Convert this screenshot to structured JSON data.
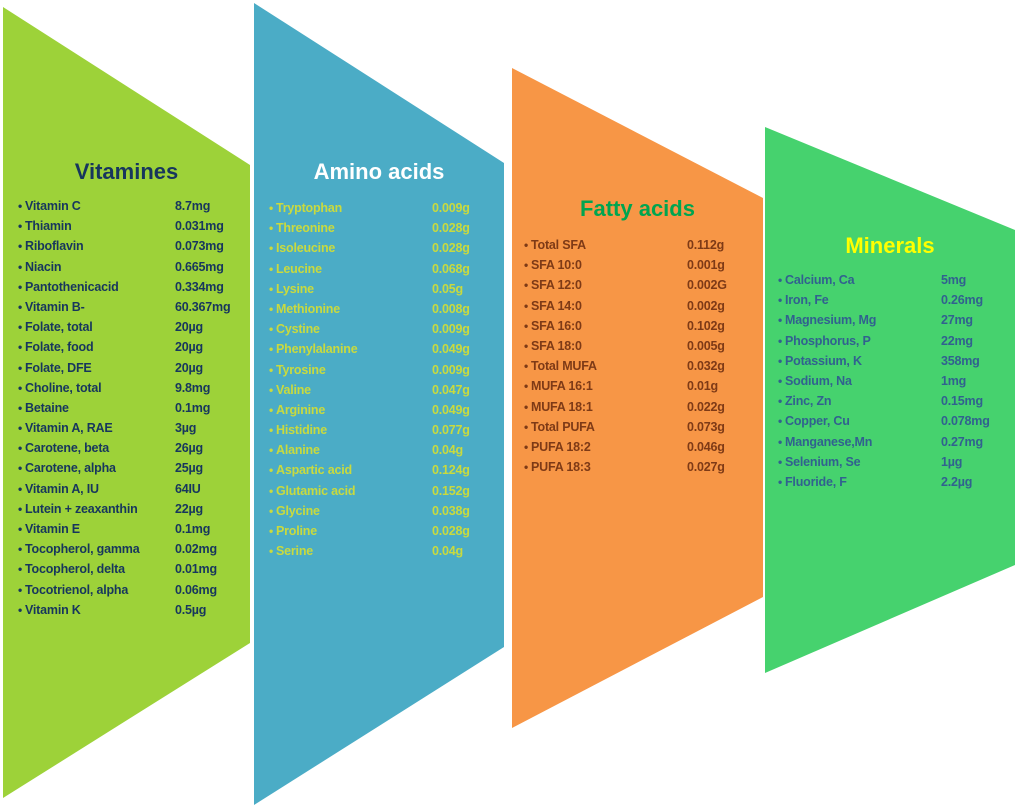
{
  "page": {
    "background": "#FFFFFF"
  },
  "panels": [
    {
      "id": "vitamins",
      "title": "Vitamines",
      "bg_color": "#9DD239",
      "title_color": "#17365D",
      "item_color": "#17365D",
      "items": [
        {
          "label": "Vitamin C",
          "value": "8.7mg"
        },
        {
          "label": "Thiamin",
          "value": "0.031mg"
        },
        {
          "label": "Riboflavin",
          "value": "0.073mg"
        },
        {
          "label": "Niacin",
          "value": "0.665mg"
        },
        {
          "label": "Pantothenicacid",
          "value": "0.334mg"
        },
        {
          "label": "Vitamin B-",
          "value": "60.367mg"
        },
        {
          "label": "Folate, total",
          "value": "20µg"
        },
        {
          "label": "Folate, food",
          "value": "20µg"
        },
        {
          "label": "Folate, DFE",
          "value": "20µg"
        },
        {
          "label": "Choline, total",
          "value": "9.8mg"
        },
        {
          "label": "Betaine",
          "value": "0.1mg"
        },
        {
          "label": "Vitamin A, RAE",
          "value": "3µg"
        },
        {
          "label": "Carotene, beta",
          "value": "26µg"
        },
        {
          "label": "Carotene, alpha",
          "value": "25µg"
        },
        {
          "label": "Vitamin A, IU",
          "value": "64IU"
        },
        {
          "label": "Lutein + zeaxanthin",
          "value": "22µg"
        },
        {
          "label": "Vitamin E",
          "value": "0.1mg"
        },
        {
          "label": "Tocopherol, gamma",
          "value": "0.02mg"
        },
        {
          "label": "Tocopherol, delta",
          "value": "0.01mg"
        },
        {
          "label": "Tocotrienol, alpha",
          "value": "0.06mg"
        },
        {
          "label": "Vitamin K",
          "value": "0.5µg"
        }
      ]
    },
    {
      "id": "amino-acids",
      "title": "Amino acids",
      "bg_color": "#4BACC6",
      "title_color": "#FFFFFF",
      "item_color": "#C9DA3E",
      "items": [
        {
          "label": "Tryptophan",
          "value": "0.009g"
        },
        {
          "label": "Threonine",
          "value": "0.028g"
        },
        {
          "label": "Isoleucine",
          "value": "0.028g"
        },
        {
          "label": "Leucine",
          "value": "0.068g"
        },
        {
          "label": "Lysine",
          "value": "0.05g"
        },
        {
          "label": "Methionine",
          "value": "0.008g"
        },
        {
          "label": "Cystine",
          "value": "0.009g"
        },
        {
          "label": "Phenylalanine",
          "value": "0.049g"
        },
        {
          "label": "Tyrosine",
          "value": "0.009g"
        },
        {
          "label": "Valine",
          "value": "0.047g"
        },
        {
          "label": "Arginine",
          "value": "0.049g"
        },
        {
          "label": "Histidine",
          "value": "0.077g"
        },
        {
          "label": "Alanine",
          "value": "0.04g"
        },
        {
          "label": "Aspartic acid",
          "value": "0.124g"
        },
        {
          "label": "Glutamic acid",
          "value": "0.152g"
        },
        {
          "label": "Glycine",
          "value": "0.038g"
        },
        {
          "label": "Proline",
          "value": "0.028g"
        },
        {
          "label": "Serine",
          "value": "0.04g"
        }
      ]
    },
    {
      "id": "fatty-acids",
      "title": "Fatty acids",
      "bg_color": "#F79646",
      "title_color": "#00A550",
      "item_color": "#7E3A16",
      "items": [
        {
          "label": "Total SFA",
          "value": "0.112g"
        },
        {
          "label": "SFA 10:0",
          "value": "0.001g"
        },
        {
          "label": "SFA 12:0",
          "value": "0.002G"
        },
        {
          "label": "SFA 14:0",
          "value": "0.002g"
        },
        {
          "label": "SFA 16:0",
          "value": "0.102g"
        },
        {
          "label": "SFA 18:0",
          "value": "0.005g"
        },
        {
          "label": "Total MUFA",
          "value": "0.032g"
        },
        {
          "label": "MUFA 16:1",
          "value": "0.01g"
        },
        {
          "label": "MUFA 18:1",
          "value": "0.022g"
        },
        {
          "label": "Total PUFA",
          "value": "0.073g"
        },
        {
          "label": "PUFA 18:2",
          "value": "0.046g"
        },
        {
          "label": "PUFA 18:3",
          "value": "0.027g"
        }
      ]
    },
    {
      "id": "minerals",
      "title": "Minerals",
      "bg_color": "#46D26E",
      "title_color": "#FFFF00",
      "item_color": "#31618F",
      "items": [
        {
          "label": "Calcium, Ca",
          "value": "5mg"
        },
        {
          "label": "Iron, Fe",
          "value": "0.26mg"
        },
        {
          "label": "Magnesium, Mg",
          "value": "27mg"
        },
        {
          "label": "Phosphorus, P",
          "value": "22mg"
        },
        {
          "label": "Potassium, K",
          "value": "358mg"
        },
        {
          "label": "Sodium, Na",
          "value": "1mg"
        },
        {
          "label": "Zinc, Zn",
          "value": "0.15mg"
        },
        {
          "label": "Copper, Cu",
          "value": "0.078mg"
        },
        {
          "label": "Manganese,Mn",
          "value": "0.27mg"
        },
        {
          "label": "Selenium, Se",
          "value": "1µg"
        },
        {
          "label": "Fluoride, F",
          "value": "2.2µg"
        }
      ]
    }
  ]
}
